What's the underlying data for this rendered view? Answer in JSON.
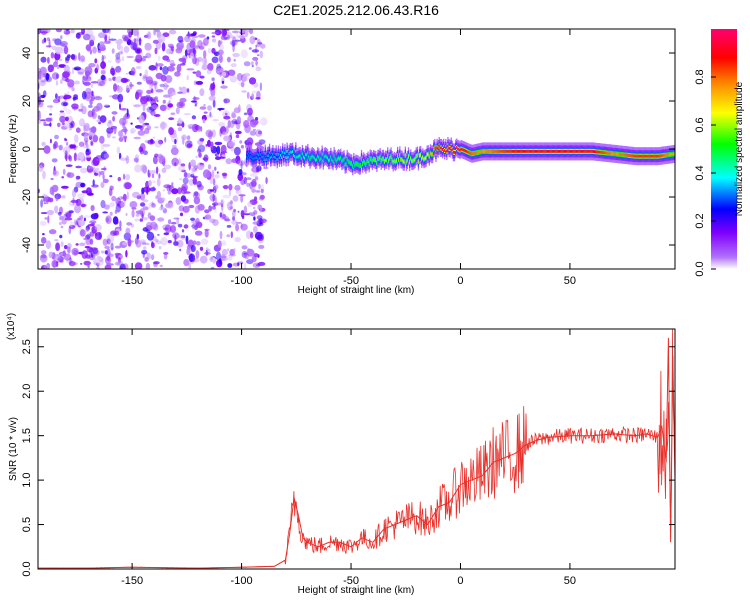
{
  "title": "C2E1.2025.212.06.43.R16",
  "chart_data": [
    {
      "type": "heatmap",
      "xlabel": "Height of straight line (km)",
      "ylabel": "Frequency (Hz)",
      "colorbar_label": "Normalized spectral amplitude",
      "xlim": [
        -193,
        98
      ],
      "ylim": [
        -50,
        50
      ],
      "x_ticks": [
        -150,
        -100,
        -50,
        0,
        50
      ],
      "y_ticks": [
        -40,
        -20,
        0,
        20,
        40
      ],
      "colorbar_ticks": [
        "0.0",
        "0.2",
        "0.4",
        "0.6",
        "0.8"
      ],
      "colorbar_range": [
        0,
        1
      ],
      "colorscale": [
        "#ffffff",
        "#9b30ff",
        "#0000ff",
        "#00ffff",
        "#00ff00",
        "#ffff00",
        "#ff8000",
        "#ff0000",
        "#ff00a0"
      ],
      "noise_region_x": [
        -193,
        -90
      ],
      "ridge": {
        "x": [
          -98,
          -85,
          -78,
          -70,
          -60,
          -50,
          -40,
          -30,
          -20,
          -15,
          -10,
          -5,
          0,
          5,
          10,
          20,
          30,
          40,
          50,
          60,
          70,
          80,
          90,
          98
        ],
        "y": [
          -3,
          -3,
          -2,
          -3,
          -4,
          -6,
          -5,
          -4,
          -4,
          -2,
          0,
          0,
          0,
          -2,
          -1,
          -1,
          -1,
          -1,
          -1,
          -1,
          -2,
          -3,
          -3,
          -2
        ],
        "amplitude": [
          0.3,
          0.35,
          0.4,
          0.45,
          0.45,
          0.5,
          0.55,
          0.6,
          0.6,
          0.65,
          0.9,
          0.95,
          0.9,
          0.8,
          0.75,
          0.85,
          0.9,
          0.9,
          0.9,
          0.9,
          0.75,
          0.85,
          0.85,
          0.7
        ]
      }
    },
    {
      "type": "line",
      "xlabel": "Height of straight line (km)",
      "ylabel": "SNR (10 * v/v)",
      "y_multiplier": "(x10⁴)",
      "xlim": [
        -193,
        98
      ],
      "ylim": [
        0,
        2.7
      ],
      "x_ticks": [
        -150,
        -100,
        -50,
        0,
        50
      ],
      "y_ticks": [
        "0.0",
        "0.5",
        "1.0",
        "1.5",
        "2.0",
        "2.5"
      ],
      "series": [
        {
          "color": "#e8302a",
          "x": [
            -193,
            -170,
            -150,
            -120,
            -100,
            -85,
            -80,
            -78,
            -76,
            -74,
            -72,
            -70,
            -65,
            -60,
            -55,
            -50,
            -45,
            -40,
            -35,
            -30,
            -25,
            -20,
            -15,
            -10,
            -5,
            0,
            5,
            10,
            15,
            20,
            25,
            30,
            35,
            40,
            50,
            60,
            70,
            80,
            85,
            90,
            92,
            94,
            95,
            96,
            97,
            98
          ],
          "y": [
            0.01,
            0.01,
            0.02,
            0.01,
            0.02,
            0.03,
            0.1,
            0.4,
            0.8,
            0.6,
            0.35,
            0.3,
            0.25,
            0.3,
            0.3,
            0.25,
            0.35,
            0.3,
            0.45,
            0.5,
            0.55,
            0.6,
            0.5,
            0.7,
            0.75,
            0.95,
            1.0,
            1.05,
            1.2,
            1.25,
            1.3,
            1.4,
            1.45,
            1.48,
            1.5,
            1.5,
            1.52,
            1.5,
            1.52,
            1.48,
            1.6,
            1.2,
            2.6,
            0.3,
            2.4,
            1.0
          ]
        }
      ]
    }
  ]
}
